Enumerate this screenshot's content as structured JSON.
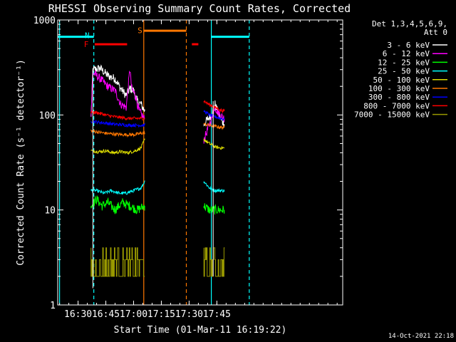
{
  "chart_data": {
    "type": "line",
    "title": "RHESSI Observing Summary Count Rates, Corrected",
    "xlabel": "Start Time (01-Mar-11 16:19:22)",
    "ylabel": "Corrected Count Rate (s⁻¹ detector⁻¹)",
    "x_unit": "minutes of day",
    "xlim": [
      979,
      1133
    ],
    "ylim": [
      1,
      1000
    ],
    "yscale": "log",
    "x_ticks": [
      {
        "x": 990,
        "label": "16:30"
      },
      {
        "x": 1005,
        "label": "16:45"
      },
      {
        "x": 1020,
        "label": "17:00"
      },
      {
        "x": 1035,
        "label": "17:15"
      },
      {
        "x": 1050,
        "label": "17:30"
      },
      {
        "x": 1065,
        "label": "17:45"
      }
    ],
    "y_ticks": [
      {
        "y": 1,
        "label": "1"
      },
      {
        "y": 10,
        "label": "10"
      },
      {
        "y": 100,
        "label": "100"
      },
      {
        "y": 1000,
        "label": "1000"
      }
    ],
    "legend": {
      "position": "right",
      "header": [
        "Det 1,3,4,5,6,9,",
        "Att 0"
      ]
    },
    "series": [
      {
        "name": "3 - 6 keV",
        "color": "#ffffff",
        "base": 100,
        "seg1": [
          [
            997,
            96
          ],
          [
            998,
            300
          ],
          [
            1002,
            310
          ],
          [
            1006,
            260
          ],
          [
            1010,
            240
          ],
          [
            1013,
            190
          ],
          [
            1016,
            160
          ],
          [
            1018,
            190
          ],
          [
            1020,
            180
          ],
          [
            1022,
            140
          ],
          [
            1024,
            130
          ],
          [
            1026,
            110
          ]
        ],
        "seg2": [
          [
            1058,
            80
          ],
          [
            1060,
            90
          ],
          [
            1062,
            100
          ],
          [
            1064,
            130
          ],
          [
            1066,
            100
          ],
          [
            1068,
            85
          ],
          [
            1069,
            80
          ]
        ]
      },
      {
        "name": "6 - 12 keV",
        "color": "#ff00ff",
        "base": 100,
        "seg1": [
          [
            997,
            96
          ],
          [
            998,
            280
          ],
          [
            1002,
            240
          ],
          [
            1006,
            200
          ],
          [
            1010,
            180
          ],
          [
            1013,
            130
          ],
          [
            1016,
            120
          ],
          [
            1018,
            300
          ],
          [
            1019,
            190
          ],
          [
            1021,
            160
          ],
          [
            1023,
            110
          ],
          [
            1026,
            90
          ]
        ],
        "seg2": [
          [
            1058,
            55
          ],
          [
            1060,
            70
          ],
          [
            1062,
            90
          ],
          [
            1064,
            120
          ],
          [
            1066,
            105
          ],
          [
            1068,
            95
          ],
          [
            1069,
            92
          ]
        ]
      },
      {
        "name": "12 - 25 keV",
        "color": "#00ff00",
        "base": 11,
        "seg1": [
          [
            997,
            11
          ],
          [
            1000,
            13
          ],
          [
            1003,
            11
          ],
          [
            1006,
            12
          ],
          [
            1010,
            10
          ],
          [
            1014,
            12
          ],
          [
            1018,
            11
          ],
          [
            1022,
            10
          ],
          [
            1026,
            11
          ]
        ],
        "seg2": [
          [
            1058,
            11
          ],
          [
            1061,
            10
          ],
          [
            1064,
            10
          ],
          [
            1067,
            10
          ],
          [
            1069,
            10
          ]
        ]
      },
      {
        "name": "25 - 50 keV",
        "color": "#00ffff",
        "base": 16,
        "seg1": [
          [
            997,
            16
          ],
          [
            1000,
            16
          ],
          [
            1004,
            15
          ],
          [
            1008,
            16
          ],
          [
            1012,
            15
          ],
          [
            1016,
            15
          ],
          [
            1020,
            16
          ],
          [
            1024,
            17
          ],
          [
            1026,
            20
          ]
        ],
        "seg2": [
          [
            1058,
            20
          ],
          [
            1061,
            17
          ],
          [
            1064,
            16
          ],
          [
            1067,
            16
          ],
          [
            1069,
            16
          ]
        ]
      },
      {
        "name": "50 - 100 keV",
        "color": "#dddd00",
        "base": 42,
        "seg1": [
          [
            997,
            42
          ],
          [
            1001,
            41
          ],
          [
            1005,
            42
          ],
          [
            1009,
            40
          ],
          [
            1013,
            41
          ],
          [
            1017,
            40
          ],
          [
            1021,
            42
          ],
          [
            1024,
            45
          ],
          [
            1026,
            55
          ]
        ],
        "seg2": [
          [
            1058,
            55
          ],
          [
            1061,
            50
          ],
          [
            1064,
            46
          ],
          [
            1067,
            45
          ],
          [
            1069,
            45
          ]
        ]
      },
      {
        "name": "100 - 300 keV",
        "color": "#ff7700",
        "base": 70,
        "seg1": [
          [
            997,
            68
          ],
          [
            1001,
            66
          ],
          [
            1005,
            64
          ],
          [
            1009,
            63
          ],
          [
            1013,
            62
          ],
          [
            1017,
            62
          ],
          [
            1021,
            62
          ],
          [
            1024,
            64
          ],
          [
            1026,
            65
          ]
        ],
        "seg2": [
          [
            1058,
            80
          ],
          [
            1061,
            78
          ],
          [
            1064,
            76
          ],
          [
            1067,
            74
          ],
          [
            1069,
            74
          ]
        ]
      },
      {
        "name": "300 - 800 keV",
        "color": "#0000ff",
        "base": 84,
        "seg1": [
          [
            997,
            86
          ],
          [
            1001,
            84
          ],
          [
            1005,
            82
          ],
          [
            1009,
            80
          ],
          [
            1013,
            79
          ],
          [
            1017,
            78
          ],
          [
            1021,
            78
          ],
          [
            1024,
            78
          ],
          [
            1026,
            78
          ]
        ],
        "seg2": [
          [
            1058,
            110
          ],
          [
            1061,
            100
          ],
          [
            1064,
            96
          ],
          [
            1067,
            92
          ],
          [
            1069,
            90
          ]
        ]
      },
      {
        "name": "800 - 7000 keV",
        "color": "#ff0000",
        "base": 107,
        "seg1": [
          [
            997,
            108
          ],
          [
            1001,
            105
          ],
          [
            1005,
            100
          ],
          [
            1009,
            96
          ],
          [
            1013,
            94
          ],
          [
            1017,
            92
          ],
          [
            1021,
            92
          ],
          [
            1024,
            92
          ],
          [
            1026,
            92
          ]
        ],
        "seg2": [
          [
            1058,
            140
          ],
          [
            1061,
            128
          ],
          [
            1064,
            120
          ],
          [
            1067,
            112
          ],
          [
            1069,
            110
          ]
        ]
      },
      {
        "name": "7000 - 15000 keV",
        "color": "#999900",
        "base": 3,
        "seg1": [
          [
            997,
            3
          ],
          [
            1026,
            3
          ]
        ],
        "seg2": [
          [
            1058,
            3
          ],
          [
            1069,
            3
          ]
        ]
      }
    ],
    "annotations": [
      {
        "text": "N",
        "color": "#00ffff",
        "x": 997.5,
        "y": 690
      },
      {
        "text": "F",
        "color": "#ff0000",
        "x": 997,
        "y": 555
      },
      {
        "text": "S",
        "color": "#ff7700",
        "x": 1026,
        "y": 780
      }
    ],
    "bars": [
      {
        "label": "night",
        "color": "#00ffff",
        "x1": 979,
        "x2": 998.5,
        "y": 665
      },
      {
        "label": "night",
        "color": "#00ffff",
        "x1": 1062,
        "x2": 1082.5,
        "y": 665
      },
      {
        "label": "flare",
        "color": "#ff0000",
        "x1": 999,
        "x2": 1016.5,
        "y": 555
      },
      {
        "label": "saa",
        "color": "#ff7700",
        "x1": 1025.5,
        "x2": 1048.5,
        "y": 770
      },
      {
        "label": "flare",
        "color": "#ff0000",
        "x1": 1051.5,
        "x2": 1055,
        "y": 555
      }
    ],
    "vlines": [
      {
        "x": 980,
        "color": "#00ffff",
        "style": "solid"
      },
      {
        "x": 998.5,
        "color": "#00ffff",
        "style": "dashed"
      },
      {
        "x": 1025.5,
        "color": "#ff7700",
        "style": "solid"
      },
      {
        "x": 1048.5,
        "color": "#ff7700",
        "style": "dashed"
      },
      {
        "x": 1062,
        "color": "#00ffff",
        "style": "solid"
      },
      {
        "x": 1082.5,
        "color": "#00ffff",
        "style": "dashed"
      }
    ],
    "gaps": [
      [
        1026,
        1057.5
      ]
    ],
    "grid": false
  },
  "footer": {
    "timestamp": "14-Oct-2021 22:18"
  }
}
